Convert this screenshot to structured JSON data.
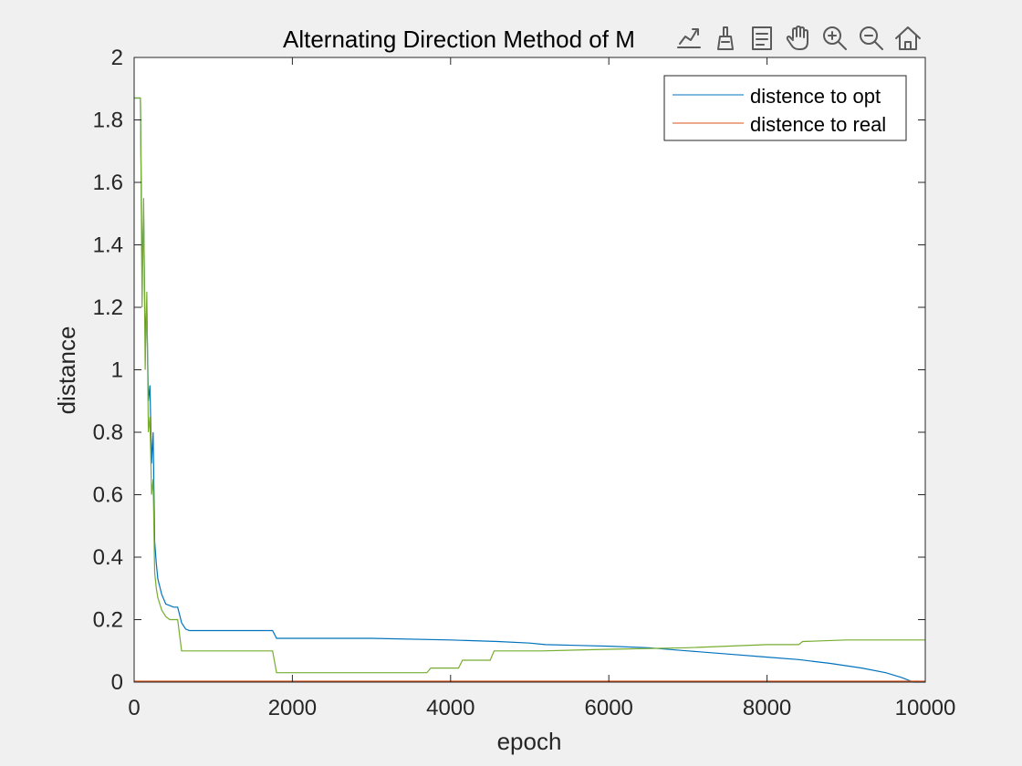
{
  "toolbar": {
    "icons": [
      "export-icon",
      "data-brush-icon",
      "data-tips-icon",
      "pan-icon",
      "zoom-in-icon",
      "zoom-out-icon",
      "restore-view-icon"
    ]
  },
  "chart_data": {
    "type": "line",
    "title": "Alternating Direction Method of M",
    "xlabel": "epoch",
    "ylabel": "distance",
    "xlim": [
      0,
      10000
    ],
    "ylim": [
      0,
      2
    ],
    "xticks": [
      0,
      2000,
      4000,
      6000,
      8000,
      10000
    ],
    "xtick_labels": [
      "0",
      "2000",
      "4000",
      "6000",
      "8000",
      "10000"
    ],
    "yticks": [
      0,
      0.2,
      0.4,
      0.6,
      0.8,
      1,
      1.2,
      1.4,
      1.6,
      1.8,
      2
    ],
    "ytick_labels": [
      "0",
      "0.2",
      "0.4",
      "0.6",
      "0.8",
      "1",
      "1.2",
      "1.4",
      "1.6",
      "1.8",
      "2"
    ],
    "grid": false,
    "legend_position": "top-right",
    "legend": [
      "distence to opt",
      "distence to real"
    ],
    "series": [
      {
        "name": "distence to opt",
        "color": "#0072bd",
        "x": [
          0,
          60,
          80,
          100,
          120,
          140,
          160,
          180,
          200,
          220,
          240,
          260,
          280,
          300,
          350,
          400,
          450,
          500,
          550,
          600,
          650,
          700,
          1750,
          1800,
          3000,
          4000,
          4600,
          5000,
          5200,
          6000,
          6500,
          7000,
          7500,
          8000,
          8400,
          8800,
          9200,
          9500,
          9700,
          9850,
          10000
        ],
        "y": [
          1.87,
          1.87,
          1.87,
          1.3,
          1.5,
          1.1,
          1.2,
          0.9,
          0.95,
          0.7,
          0.8,
          0.45,
          0.38,
          0.33,
          0.28,
          0.25,
          0.245,
          0.24,
          0.24,
          0.19,
          0.17,
          0.165,
          0.165,
          0.14,
          0.14,
          0.135,
          0.13,
          0.125,
          0.12,
          0.115,
          0.11,
          0.1,
          0.09,
          0.08,
          0.072,
          0.06,
          0.045,
          0.03,
          0.015,
          0.0,
          0.0
        ]
      },
      {
        "name": "distence to real",
        "color": "#d95319",
        "x": [
          0,
          60,
          80,
          100,
          120,
          140,
          160,
          180,
          200,
          220,
          240,
          260,
          280,
          300,
          350,
          400,
          450,
          500,
          550,
          600,
          650,
          1750,
          1800,
          3700,
          3750,
          4100,
          4150,
          4500,
          4550,
          5100,
          5150,
          6000,
          7000,
          8000,
          8400,
          8450,
          9000,
          10000
        ],
        "y": [
          0.003,
          0.003,
          0.003,
          0.003,
          0.003,
          0.003,
          0.003,
          0.003,
          0.003,
          0.003,
          0.003,
          0.003,
          0.003,
          0.003,
          0.003,
          0.003,
          0.003,
          0.003,
          0.003,
          0.003,
          0.003,
          0.003,
          0.003,
          0.003,
          0.003,
          0.003,
          0.003,
          0.003,
          0.003,
          0.003,
          0.003,
          0.003,
          0.003,
          0.003,
          0.003,
          0.003,
          0.003,
          0.003
        ]
      },
      {
        "color": "#77ac30",
        "x": [
          0,
          60,
          80,
          100,
          120,
          140,
          160,
          180,
          200,
          220,
          240,
          260,
          280,
          300,
          350,
          400,
          450,
          500,
          550,
          600,
          650,
          1750,
          1800,
          3700,
          3750,
          4100,
          4150,
          4500,
          4550,
          5100,
          5150,
          6000,
          7000,
          8000,
          8400,
          8450,
          9000,
          10000
        ],
        "y": [
          1.87,
          1.87,
          1.87,
          1.2,
          1.55,
          1.0,
          1.25,
          0.8,
          0.85,
          0.6,
          0.65,
          0.35,
          0.3,
          0.27,
          0.23,
          0.21,
          0.2,
          0.2,
          0.2,
          0.1,
          0.1,
          0.1,
          0.03,
          0.03,
          0.045,
          0.045,
          0.07,
          0.07,
          0.1,
          0.1,
          0.1,
          0.105,
          0.11,
          0.12,
          0.12,
          0.13,
          0.135,
          0.135
        ]
      }
    ]
  }
}
